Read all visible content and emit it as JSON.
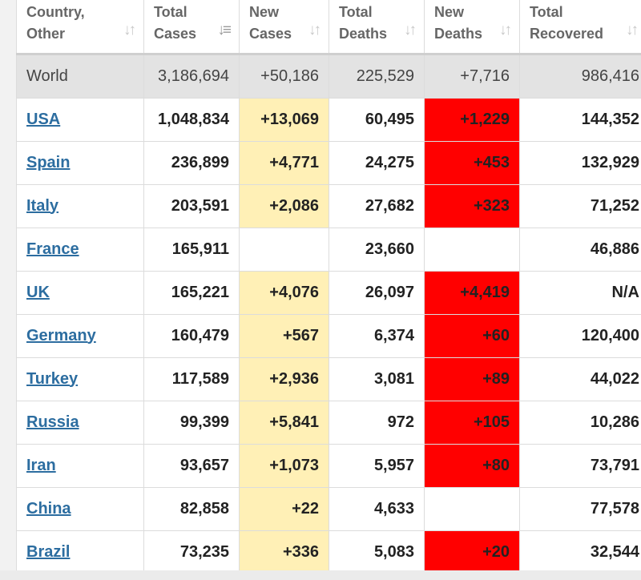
{
  "headers": [
    {
      "line1": "Country,",
      "line2": "Other"
    },
    {
      "line1": "Total",
      "line2": "Cases"
    },
    {
      "line1": "New",
      "line2": "Cases"
    },
    {
      "line1": "Total",
      "line2": "Deaths"
    },
    {
      "line1": "New",
      "line2": "Deaths"
    },
    {
      "line1": "Total",
      "line2": "Recovered"
    }
  ],
  "icons": {
    "sort": "sort-arrows-icon",
    "sort_active": "sort-descending-icon"
  },
  "colors": {
    "new_cases_highlight": "#fff0b6",
    "new_deaths_highlight": "#ff0000",
    "link": "#2c6da0",
    "world_row": "#e3e3e3"
  },
  "world": {
    "country": "World",
    "total_cases": "3,186,694",
    "new_cases": "+50,186",
    "total_deaths": "225,529",
    "new_deaths": "+7,716",
    "total_recovered": "986,416"
  },
  "rows": [
    {
      "country": "USA",
      "total_cases": "1,048,834",
      "new_cases": "+13,069",
      "total_deaths": "60,495",
      "new_deaths": "+1,229",
      "total_recovered": "144,352"
    },
    {
      "country": "Spain",
      "total_cases": "236,899",
      "new_cases": "+4,771",
      "total_deaths": "24,275",
      "new_deaths": "+453",
      "total_recovered": "132,929"
    },
    {
      "country": "Italy",
      "total_cases": "203,591",
      "new_cases": "+2,086",
      "total_deaths": "27,682",
      "new_deaths": "+323",
      "total_recovered": "71,252"
    },
    {
      "country": "France",
      "total_cases": "165,911",
      "new_cases": "",
      "total_deaths": "23,660",
      "new_deaths": "",
      "total_recovered": "46,886"
    },
    {
      "country": "UK",
      "total_cases": "165,221",
      "new_cases": "+4,076",
      "total_deaths": "26,097",
      "new_deaths": "+4,419",
      "total_recovered": "N/A"
    },
    {
      "country": "Germany",
      "total_cases": "160,479",
      "new_cases": "+567",
      "total_deaths": "6,374",
      "new_deaths": "+60",
      "total_recovered": "120,400"
    },
    {
      "country": "Turkey",
      "total_cases": "117,589",
      "new_cases": "+2,936",
      "total_deaths": "3,081",
      "new_deaths": "+89",
      "total_recovered": "44,022"
    },
    {
      "country": "Russia",
      "total_cases": "99,399",
      "new_cases": "+5,841",
      "total_deaths": "972",
      "new_deaths": "+105",
      "total_recovered": "10,286"
    },
    {
      "country": "Iran",
      "total_cases": "93,657",
      "new_cases": "+1,073",
      "total_deaths": "5,957",
      "new_deaths": "+80",
      "total_recovered": "73,791"
    },
    {
      "country": "China",
      "total_cases": "82,858",
      "new_cases": "+22",
      "total_deaths": "4,633",
      "new_deaths": "",
      "total_recovered": "77,578"
    },
    {
      "country": "Brazil",
      "total_cases": "73,235",
      "new_cases": "+336",
      "total_deaths": "5,083",
      "new_deaths": "+20",
      "total_recovered": "32,544"
    }
  ]
}
